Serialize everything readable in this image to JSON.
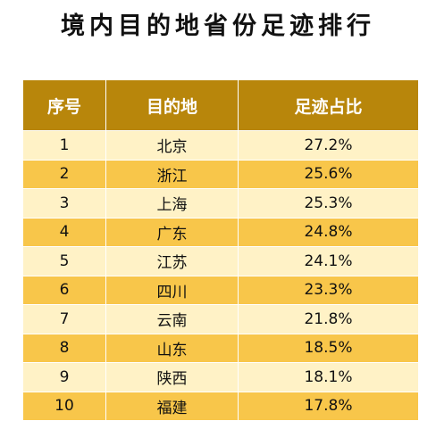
{
  "title": "境内目的地省份足迹排行",
  "table": {
    "headers": [
      "序号",
      "目的地",
      "足迹占比"
    ],
    "rows": [
      {
        "rank": "1",
        "destination": "北京",
        "share": "27.2%"
      },
      {
        "rank": "2",
        "destination": "浙江",
        "share": "25.6%"
      },
      {
        "rank": "3",
        "destination": "上海",
        "share": "25.3%"
      },
      {
        "rank": "4",
        "destination": "广东",
        "share": "24.8%"
      },
      {
        "rank": "5",
        "destination": "江苏",
        "share": "24.1%"
      },
      {
        "rank": "6",
        "destination": "四川",
        "share": "23.3%"
      },
      {
        "rank": "7",
        "destination": "云南",
        "share": "21.8%"
      },
      {
        "rank": "8",
        "destination": "山东",
        "share": "18.5%"
      },
      {
        "rank": "9",
        "destination": "陕西",
        "share": "18.1%"
      },
      {
        "rank": "10",
        "destination": "福建",
        "share": "17.8%"
      }
    ]
  },
  "colors": {
    "header_bg": "#b8860b",
    "header_text": "#ffffff",
    "row_light": "#fff2c6",
    "row_dark": "#f8c64a"
  }
}
